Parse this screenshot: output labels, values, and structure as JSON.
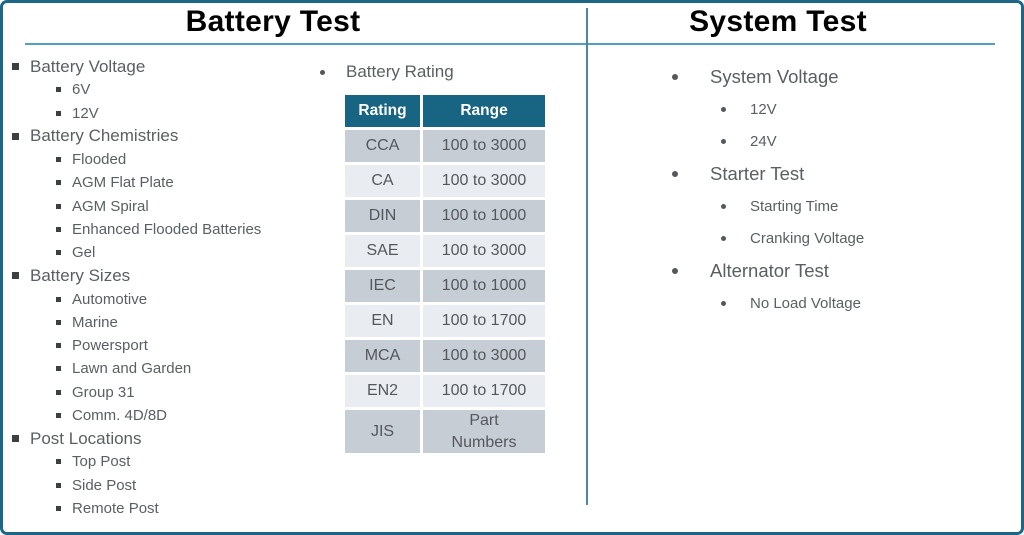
{
  "battery_panel": {
    "title": "Battery Test",
    "outline": [
      {
        "label": "Battery Voltage",
        "level": 1
      },
      {
        "label": "6V",
        "level": 2
      },
      {
        "label": "12V",
        "level": 2
      },
      {
        "label": "Battery Chemistries",
        "level": 1
      },
      {
        "label": "Flooded",
        "level": 2
      },
      {
        "label": "AGM Flat Plate",
        "level": 2
      },
      {
        "label": "AGM Spiral",
        "level": 2
      },
      {
        "label": "Enhanced Flooded Batteries",
        "level": 2
      },
      {
        "label": "Gel",
        "level": 2
      },
      {
        "label": "Battery Sizes",
        "level": 1
      },
      {
        "label": "Automotive",
        "level": 2
      },
      {
        "label": "Marine",
        "level": 2
      },
      {
        "label": "Powersport",
        "level": 2
      },
      {
        "label": "Lawn and Garden",
        "level": 2
      },
      {
        "label": "Group 31",
        "level": 2
      },
      {
        "label": "Comm. 4D/8D",
        "level": 2
      },
      {
        "label": "Post Locations",
        "level": 1
      },
      {
        "label": "Top Post",
        "level": 2
      },
      {
        "label": "Side Post",
        "level": 2
      },
      {
        "label": "Remote Post",
        "level": 2
      }
    ],
    "rating_heading": "Battery Rating",
    "rating_table": {
      "columns": [
        "Rating",
        "Range"
      ],
      "rows": [
        [
          "CCA",
          "100 to 3000"
        ],
        [
          "CA",
          "100 to 3000"
        ],
        [
          "DIN",
          "100 to 1000"
        ],
        [
          "SAE",
          "100 to 3000"
        ],
        [
          "IEC",
          "100 to 1000"
        ],
        [
          "EN",
          "100 to 1700"
        ],
        [
          "MCA",
          "100 to 3000"
        ],
        [
          "EN2",
          "100 to 1700"
        ],
        [
          "JIS",
          "Part\nNumbers"
        ]
      ]
    }
  },
  "system_panel": {
    "title": "System Test",
    "outline": [
      {
        "label": "System Voltage",
        "level": 1
      },
      {
        "label": "12V",
        "level": 2
      },
      {
        "label": "24V",
        "level": 2
      },
      {
        "label": "Starter Test",
        "level": 1
      },
      {
        "label": "Starting Time",
        "level": 2
      },
      {
        "label": "Cranking Voltage",
        "level": 2
      },
      {
        "label": "Alternator Test",
        "level": 1
      },
      {
        "label": "No Load Voltage",
        "level": 2
      }
    ]
  },
  "colors": {
    "slide_border": "#1e6686",
    "title_rule": "#4f9fc6",
    "panel_divider": "#4d85a5",
    "table_header_bg": "#176582",
    "table_row_dark": "#c6cdd4",
    "table_row_light": "#e9edf1",
    "body_text": "#595f63"
  }
}
